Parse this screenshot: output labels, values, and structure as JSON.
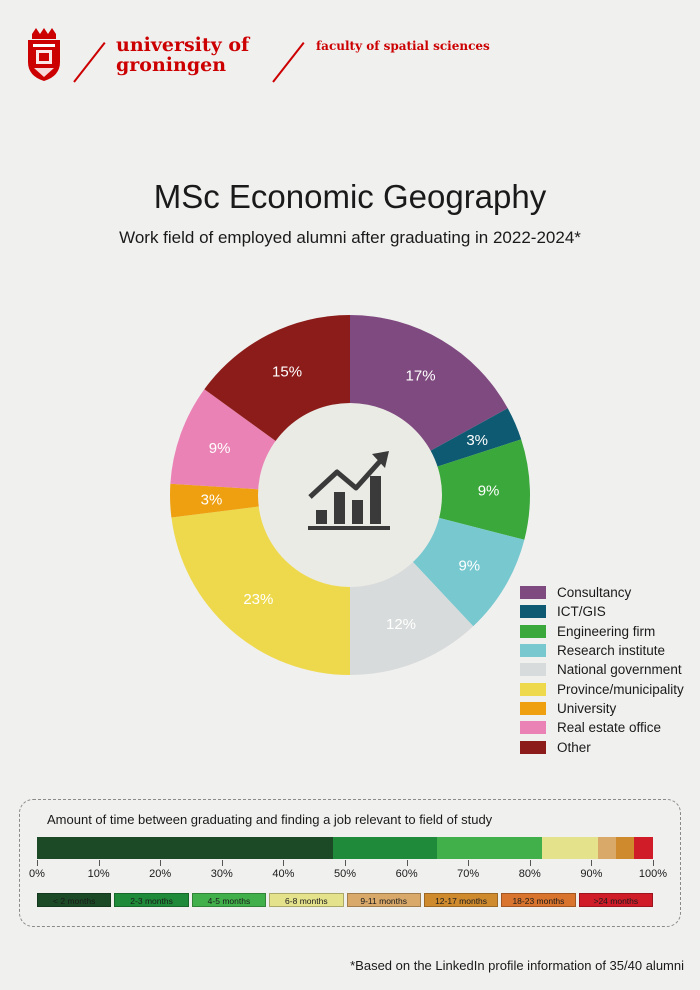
{
  "header": {
    "university_line1": "university of",
    "university_line2": "groningen",
    "faculty": "faculty of spatial sciences"
  },
  "chart_data": [
    {
      "type": "pie",
      "title": "MSc Economic Geography",
      "subtitle": "Work field of employed alumni after graduating in 2022-2024*",
      "center_icon": "chart-growth-icon",
      "legend_position": "right",
      "slices": [
        {
          "label": "Consultancy",
          "value": 17,
          "display": "17%",
          "color": "#7f4a7f"
        },
        {
          "label": "ICT/GIS",
          "value": 3,
          "display": "3%",
          "color": "#0e5a72"
        },
        {
          "label": "Engineering firm",
          "value": 9,
          "display": "9%",
          "color": "#3aa83a"
        },
        {
          "label": "Research institute",
          "value": 9,
          "display": "9%",
          "color": "#78c8cf"
        },
        {
          "label": "National government",
          "value": 12,
          "display": "12%",
          "color": "#d8dbdb"
        },
        {
          "label": "Province/municipality",
          "value": 23,
          "display": "23%",
          "color": "#eed94d"
        },
        {
          "label": "University",
          "value": 3,
          "display": "3%",
          "color": "#efa010"
        },
        {
          "label": "Real estate office",
          "value": 9,
          "display": "9%",
          "color": "#ea82b5"
        },
        {
          "label": "Other",
          "value": 15,
          "display": "15%",
          "color": "#8b1c1a"
        }
      ]
    },
    {
      "type": "bar",
      "title": "Amount of time between graduating and finding a job relevant to field of study",
      "orientation": "horizontal-stacked",
      "xlim": [
        0,
        100
      ],
      "ticks": [
        "0%",
        "10%",
        "20%",
        "30%",
        "40%",
        "50%",
        "60%",
        "70%",
        "80%",
        "90%",
        "100%"
      ],
      "tick_values": [
        0,
        10,
        20,
        30,
        40,
        50,
        60,
        70,
        80,
        90,
        100
      ],
      "segments": [
        {
          "label": "< 2 months",
          "value": 48,
          "color": "#1c4a26"
        },
        {
          "label": "2-3 months",
          "value": 17,
          "color": "#1f8a3a"
        },
        {
          "label": "4-5 months",
          "value": 17,
          "color": "#42b04a"
        },
        {
          "label": "6-8 months",
          "value": 9,
          "color": "#e5e28c"
        },
        {
          "label": "9-11 months",
          "value": 3,
          "color": "#d9a96a"
        },
        {
          "label": "12-17 months",
          "value": 3,
          "color": "#cf8a2e"
        },
        {
          "label": "18-23 months",
          "value": 0,
          "color": "#d9742e"
        },
        {
          "label": ">24 months",
          "value": 3,
          "color": "#d01c28"
        }
      ]
    }
  ],
  "footnote": "*Based on the LinkedIn profile information of 35/40 alumni"
}
